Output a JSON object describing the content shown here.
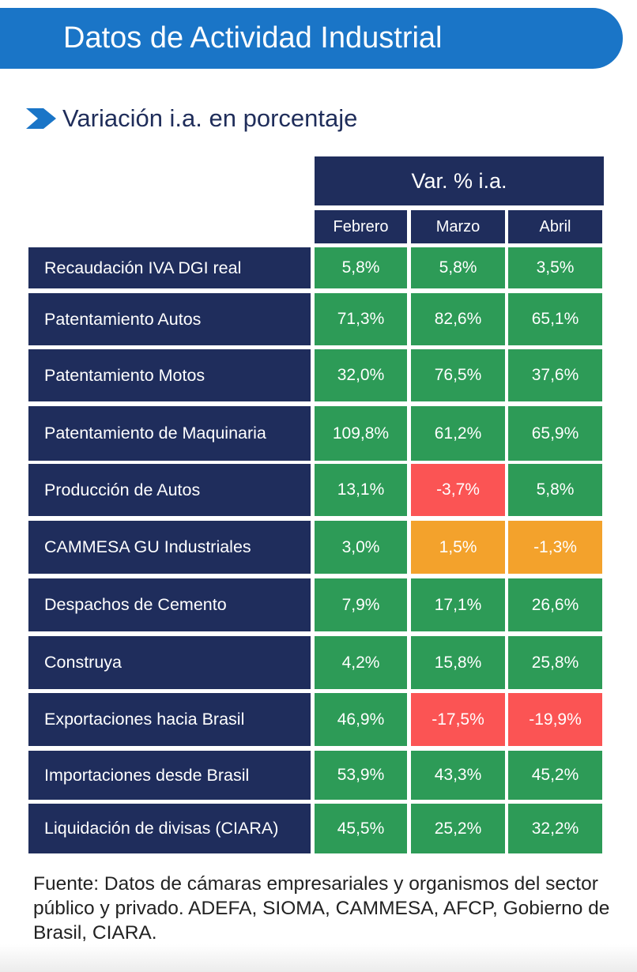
{
  "banner": {
    "title": "Datos de Actividad Industrial"
  },
  "subtitle": {
    "text": "Variación i.a. en porcentaje",
    "icon": "chevron-right-icon",
    "icon_color": "#1a75c7"
  },
  "table": {
    "group_header": "Var. % i.a.",
    "months": [
      "Febrero",
      "Marzo",
      "Abril"
    ],
    "rows": [
      {
        "label": "Recaudación IVA DGI real",
        "values": [
          "5,8%",
          "5,8%",
          "3,5%"
        ],
        "status": [
          "green",
          "green",
          "green"
        ]
      },
      {
        "label": "Patentamiento Autos",
        "values": [
          "71,3%",
          "82,6%",
          "65,1%"
        ],
        "status": [
          "green",
          "green",
          "green"
        ]
      },
      {
        "label": "Patentamiento Motos",
        "values": [
          "32,0%",
          "76,5%",
          "37,6%"
        ],
        "status": [
          "green",
          "green",
          "green"
        ]
      },
      {
        "label": "Patentamiento de Maquinaria",
        "values": [
          "109,8%",
          "61,2%",
          "65,9%"
        ],
        "status": [
          "green",
          "green",
          "green"
        ]
      },
      {
        "label": "Producción de Autos",
        "values": [
          "13,1%",
          "-3,7%",
          "5,8%"
        ],
        "status": [
          "green",
          "red",
          "green"
        ]
      },
      {
        "label": "CAMMESA GU Industriales",
        "values": [
          "3,0%",
          "1,5%",
          "-1,3%"
        ],
        "status": [
          "green",
          "orange",
          "orange"
        ]
      },
      {
        "label": "Despachos de Cemento",
        "values": [
          "7,9%",
          "17,1%",
          "26,6%"
        ],
        "status": [
          "green",
          "green",
          "green"
        ]
      },
      {
        "label": "Construya",
        "values": [
          "4,2%",
          "15,8%",
          "25,8%"
        ],
        "status": [
          "green",
          "green",
          "green"
        ]
      },
      {
        "label": "Exportaciones hacia Brasil",
        "values": [
          "46,9%",
          "-17,5%",
          "-19,9%"
        ],
        "status": [
          "green",
          "red",
          "red"
        ]
      },
      {
        "label": "Importaciones desde Brasil",
        "values": [
          "53,9%",
          "43,3%",
          "45,2%"
        ],
        "status": [
          "green",
          "green",
          "green"
        ]
      },
      {
        "label": "Liquidación de divisas (CIARA)",
        "values": [
          "45,5%",
          "25,2%",
          "32,2%"
        ],
        "status": [
          "green",
          "green",
          "green"
        ]
      }
    ]
  },
  "source": {
    "text": "Fuente: Datos de cámaras empresariales y organismos del sector público y privado. ADEFA, SIOMA, CAMMESA, AFCP, Gobierno de Brasil, CIARA."
  },
  "colors": {
    "banner": "#1a75c7",
    "header": "#1f2d5c",
    "green": "#2d9b57",
    "red": "#fb5454",
    "orange": "#f3a22c"
  }
}
